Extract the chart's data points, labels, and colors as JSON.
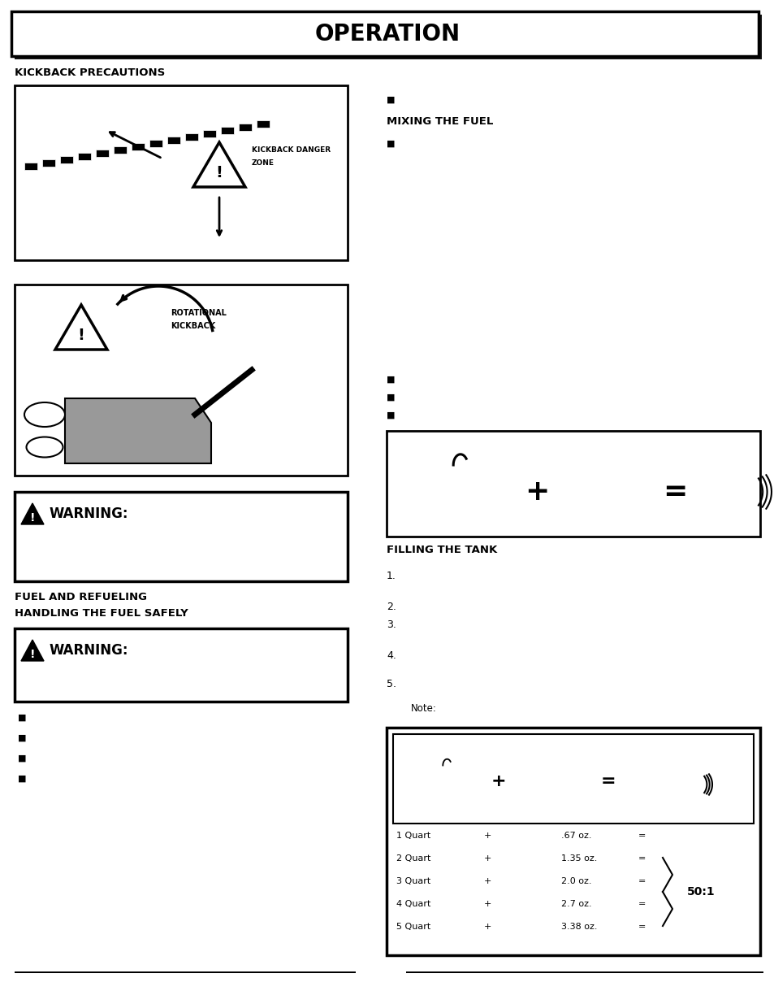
{
  "title": "OPERATION",
  "bg_color": "#ffffff",
  "kickback_title": "KICKBACK PRECAUTIONS",
  "mixing_title": "MIXING THE FUEL",
  "filling_title": "FILLING THE TANK",
  "fuel_refueling_title": "FUEL AND REFUELING",
  "handling_title": "HANDLING THE FUEL SAFELY",
  "warning_text": "WARNING:",
  "note_text": "Note:",
  "fuel_table_rows": [
    [
      "1 Quart",
      "+",
      ".67 oz.",
      "="
    ],
    [
      "2 Quart",
      "+",
      "1.35 oz.",
      "="
    ],
    [
      "3 Quart",
      "+",
      "2.0 oz.",
      "="
    ],
    [
      "4 Quart",
      "+",
      "2.7 oz.",
      "="
    ],
    [
      "5 Quart",
      "+",
      "3.38 oz.",
      "="
    ]
  ],
  "ratio": "50:1",
  "numbered_items": [
    "1.",
    "2.",
    "3.",
    "4.",
    "5."
  ],
  "note_label": "Note:"
}
